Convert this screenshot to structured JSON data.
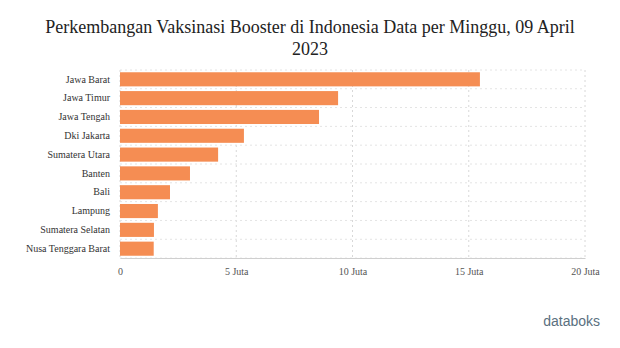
{
  "chart_data": {
    "type": "bar",
    "orientation": "horizontal",
    "title": "Perkembangan Vaksinasi Booster di Indonesia Data per Minggu, 09 April 2023",
    "categories": [
      "Jawa Barat",
      "Jawa Timur",
      "Jawa Tengah",
      "Dki Jakarta",
      "Sumatera Utara",
      "Banten",
      "Bali",
      "Lampung",
      "Sumatera Selatan",
      "Nusa Tenggara Barat"
    ],
    "values": [
      15.48,
      9.38,
      8.56,
      5.33,
      4.22,
      3.01,
      2.15,
      1.63,
      1.46,
      1.45
    ],
    "color": "#f58d53",
    "xlim": [
      0,
      20
    ],
    "xticks": [
      0,
      {
        "value": 5,
        "label": "5 Juta"
      },
      {
        "value": 10,
        "label": "10 Juta"
      },
      {
        "value": 15,
        "label": "15 Juta"
      },
      {
        "value": 20,
        "label": "20 Juta"
      }
    ],
    "grid": true,
    "source": "databoks"
  }
}
